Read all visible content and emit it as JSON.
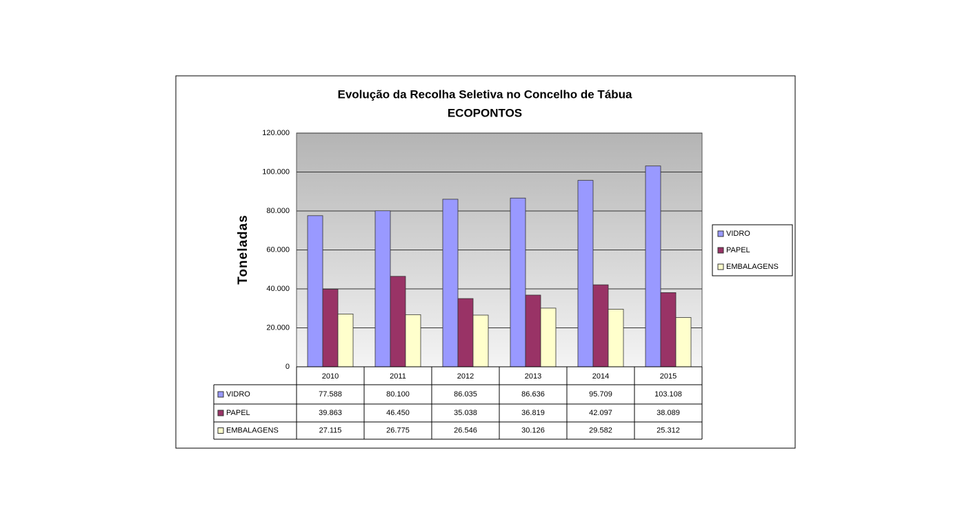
{
  "chart_data": {
    "type": "bar",
    "title": "Evolução da Recolha Seletiva no Concelho de Tábua",
    "subtitle": "ECOPONTOS",
    "y_label": "Toneladas",
    "categories": [
      "2010",
      "2011",
      "2012",
      "2013",
      "2014",
      "2015"
    ],
    "series": [
      {
        "name": "VIDRO",
        "color": "#9999ff",
        "values": [
          77588,
          80100,
          86035,
          86636,
          95709,
          103108
        ],
        "value_labels": [
          "77.588",
          "80.100",
          "86.035",
          "86.636",
          "95.709",
          "103.108"
        ]
      },
      {
        "name": "PAPEL",
        "color": "#993366",
        "values": [
          39863,
          46450,
          35038,
          36819,
          42097,
          38089
        ],
        "value_labels": [
          "39.863",
          "46.450",
          "35.038",
          "36.819",
          "42.097",
          "38.089"
        ]
      },
      {
        "name": "EMBALAGENS",
        "color": "#ffffcc",
        "values": [
          27115,
          26775,
          26546,
          30126,
          29582,
          25312
        ],
        "value_labels": [
          "27.115",
          "26.775",
          "26.546",
          "30.126",
          "29.582",
          "25.312"
        ]
      }
    ],
    "ylim": [
      0,
      120000
    ],
    "yticks": [
      0,
      {
        "value": 20000,
        "label": "20.000"
      },
      {
        "value": 40000,
        "label": "40.000"
      },
      {
        "value": 60000,
        "label": "60.000"
      },
      {
        "value": 80000,
        "label": "80.000"
      },
      {
        "value": 100000,
        "label": "100.000"
      },
      {
        "value": 120000,
        "label": "120.000"
      }
    ],
    "grid": true,
    "legend": "right"
  }
}
